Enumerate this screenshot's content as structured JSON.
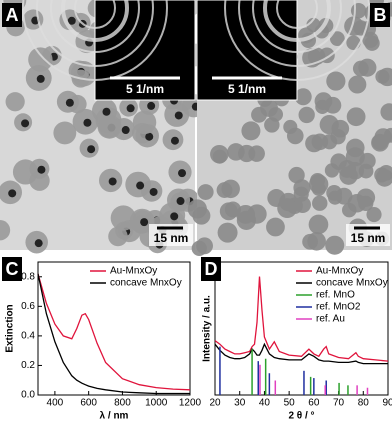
{
  "panels": [
    {
      "label": "A",
      "inset_scale": "5 1/nm",
      "scale": "15 nm"
    },
    {
      "label": "B",
      "inset_scale": "5 1/nm",
      "scale": "15 nm"
    }
  ],
  "chart_data": [
    {
      "type": "line",
      "label": "C",
      "xlabel": "λ / nm",
      "ylabel": "Extinction",
      "xlim": [
        300,
        1200
      ],
      "xticks": [
        400,
        600,
        800,
        1000,
        1200
      ],
      "ylim": [
        0,
        0.9
      ],
      "yticks": [
        {
          "value": 0,
          "label": "0.0"
        },
        {
          "value": 0.2,
          "label": "0.2"
        },
        {
          "value": 0.4,
          "label": "0.4"
        },
        {
          "value": 0.6,
          "label": "0.6"
        },
        {
          "value": 0.8,
          "label": "0.8"
        }
      ],
      "legend": "upper right",
      "series": [
        {
          "name": "Au-MnxOy",
          "color": "#e0143c",
          "style": "line",
          "x": [
            300,
            350,
            400,
            450,
            500,
            530,
            560,
            580,
            600,
            650,
            700,
            800,
            900,
            1000,
            1100,
            1200
          ],
          "values": [
            0.82,
            0.62,
            0.48,
            0.4,
            0.38,
            0.45,
            0.54,
            0.55,
            0.51,
            0.35,
            0.22,
            0.11,
            0.07,
            0.05,
            0.04,
            0.035
          ]
        },
        {
          "name": "concave MnxOy",
          "color": "#000000",
          "style": "line",
          "x": [
            300,
            350,
            400,
            450,
            500,
            530,
            560,
            580,
            600,
            650,
            700,
            800,
            900,
            1000,
            1100,
            1200
          ],
          "values": [
            0.82,
            0.55,
            0.36,
            0.22,
            0.13,
            0.1,
            0.08,
            0.07,
            0.06,
            0.045,
            0.035,
            0.02,
            0.015,
            0.01,
            0.01,
            0.01
          ]
        }
      ]
    },
    {
      "type": "line",
      "label": "D",
      "xlabel": "2 θ / °",
      "ylabel": "Intensity / a.u.",
      "xlim": [
        20,
        90
      ],
      "xticks": [
        20,
        30,
        40,
        50,
        60,
        70,
        80,
        90
      ],
      "ylim": [
        0,
        110
      ],
      "legend": "upper right",
      "series": [
        {
          "name": "Au-MnxOy",
          "color": "#e0143c",
          "style": "line",
          "x": [
            20,
            22,
            24,
            26,
            28,
            30,
            32,
            34,
            35,
            36,
            37,
            38,
            39,
            40,
            42,
            44,
            46,
            50,
            55,
            58,
            60,
            62,
            64,
            65,
            66,
            70,
            74,
            77,
            78,
            80,
            85,
            90
          ],
          "values": [
            45,
            42,
            38,
            36,
            34,
            34,
            35,
            36,
            40,
            42,
            60,
            98,
            70,
            48,
            38,
            44,
            36,
            33,
            32,
            38,
            34,
            32,
            38,
            40,
            34,
            31,
            30,
            35,
            32,
            30,
            29,
            28
          ]
        },
        {
          "name": "concave MnxOy",
          "color": "#000000",
          "style": "line",
          "x": [
            20,
            22,
            24,
            26,
            28,
            30,
            32,
            34,
            35,
            36,
            37,
            38,
            39,
            40,
            42,
            44,
            46,
            50,
            55,
            58,
            60,
            62,
            64,
            65,
            66,
            70,
            74,
            77,
            78,
            80,
            85,
            90
          ],
          "values": [
            42,
            37,
            33,
            31,
            30,
            30,
            31,
            34,
            38,
            36,
            33,
            33,
            37,
            42,
            34,
            31,
            30,
            29,
            29,
            34,
            32,
            29,
            28,
            28,
            28,
            27,
            27,
            28,
            27,
            26,
            26,
            26
          ]
        },
        {
          "name": "ref. MnO",
          "color": "#2ca02c",
          "style": "stick",
          "x": [
            35,
            40.5,
            58.7,
            70.2,
            73.8
          ],
          "values": [
            38,
            30,
            15,
            10,
            8
          ]
        },
        {
          "name": "ref. MnO2",
          "color": "#1f2fa0",
          "style": "stick",
          "x": [
            22,
            37.5,
            42,
            56,
            60,
            65
          ],
          "values": [
            40,
            28,
            18,
            20,
            14,
            12
          ]
        },
        {
          "name": "ref. Au",
          "color": "#e040c0",
          "style": "stick",
          "x": [
            38.2,
            44.4,
            64.6,
            77.5,
            81.7
          ],
          "values": [
            25,
            12,
            8,
            8,
            6
          ]
        }
      ]
    }
  ]
}
